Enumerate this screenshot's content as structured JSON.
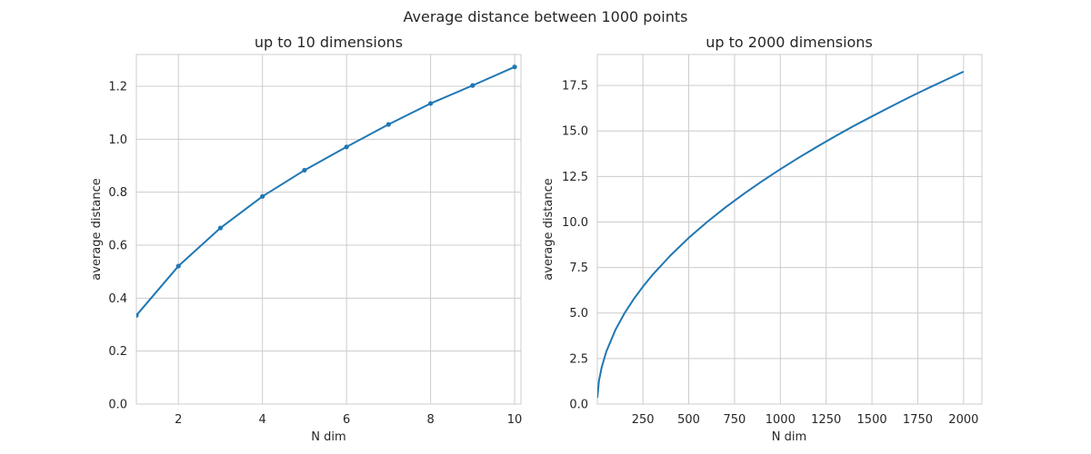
{
  "figure": {
    "suptitle": "Average distance between 1000 points"
  },
  "colors": {
    "line": "#1f77b4",
    "grid": "#cccccc",
    "spine": "#cccccc",
    "text": "#262626"
  },
  "chart_data": [
    {
      "type": "line",
      "title": "up to 10 dimensions",
      "xlabel": "N dim",
      "ylabel": "average distance",
      "xlim": [
        1,
        10.15
      ],
      "ylim": [
        0,
        1.32
      ],
      "xticks": [
        2,
        4,
        6,
        8,
        10
      ],
      "yticks": [
        0.0,
        0.2,
        0.4,
        0.6,
        0.8,
        1.0,
        1.2
      ],
      "ytick_labels": [
        "0.0",
        "0.2",
        "0.4",
        "0.6",
        "0.8",
        "1.0",
        "1.2"
      ],
      "xtick_labels": [
        "2",
        "4",
        "6",
        "8",
        "10"
      ],
      "grid": true,
      "markers": true,
      "series": [
        {
          "x": [
            1,
            2,
            3,
            4,
            5,
            6,
            7,
            8,
            9,
            10
          ],
          "y": [
            0.335,
            0.521,
            0.665,
            0.784,
            0.883,
            0.971,
            1.056,
            1.135,
            1.203,
            1.273
          ]
        }
      ]
    },
    {
      "type": "line",
      "title": "up to 2000 dimensions",
      "xlabel": "N dim",
      "ylabel": "average distance",
      "xlim": [
        1,
        2100
      ],
      "ylim": [
        0,
        19.2
      ],
      "xticks": [
        250,
        500,
        750,
        1000,
        1250,
        1500,
        1750,
        2000
      ],
      "xtick_labels": [
        "250",
        "500",
        "750",
        "1000",
        "1250",
        "1500",
        "1750",
        "2000"
      ],
      "yticks": [
        0.0,
        2.5,
        5.0,
        7.5,
        10.0,
        12.5,
        15.0,
        17.5
      ],
      "ytick_labels": [
        "0.0",
        "2.5",
        "5.0",
        "7.5",
        "10.0",
        "12.5",
        "15.0",
        "17.5"
      ],
      "grid": true,
      "markers": false,
      "series": [
        {
          "x": [
            1,
            10,
            25,
            50,
            100,
            150,
            200,
            250,
            300,
            400,
            500,
            600,
            700,
            800,
            900,
            1000,
            1100,
            1200,
            1300,
            1400,
            1500,
            1600,
            1700,
            1800,
            1900,
            2000
          ],
          "y": [
            0.34,
            1.28,
            2.03,
            2.88,
            4.08,
            5.0,
            5.77,
            6.45,
            7.07,
            8.16,
            9.13,
            10.0,
            10.8,
            11.54,
            12.24,
            12.9,
            13.53,
            14.13,
            14.71,
            15.27,
            15.8,
            16.32,
            16.83,
            17.32,
            17.79,
            18.26
          ]
        }
      ]
    }
  ]
}
